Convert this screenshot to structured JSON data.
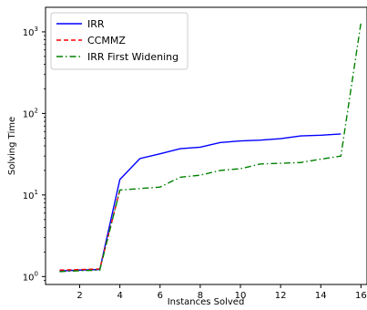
{
  "chart_data": {
    "type": "line",
    "xlabel": "Instances Solved",
    "ylabel": "Solving Time",
    "yscale": "log",
    "xlim": [
      0.3,
      16.3
    ],
    "ylim": [
      0.8,
      2000
    ],
    "x_ticks": [
      2,
      4,
      6,
      8,
      10,
      12,
      14,
      16
    ],
    "y_ticks": [
      {
        "value": 1,
        "base": "10",
        "exp": "0"
      },
      {
        "value": 10,
        "base": "10",
        "exp": "1"
      },
      {
        "value": 100,
        "base": "10",
        "exp": "2"
      },
      {
        "value": 1000,
        "base": "10",
        "exp": "3"
      }
    ],
    "legend_position": "top-left",
    "series": [
      {
        "name": "IRR",
        "color": "#0000ff",
        "style": "solid",
        "x": [
          1,
          2,
          3,
          4,
          5,
          6,
          7,
          8,
          9,
          10,
          11,
          12,
          13,
          14,
          15
        ],
        "values": [
          1.17,
          1.2,
          1.22,
          15.5,
          28,
          32,
          37,
          38.5,
          44,
          46,
          47,
          49,
          53,
          54,
          56
        ]
      },
      {
        "name": "CCMMZ",
        "color": "#ff0000",
        "style": "dashed",
        "x": [
          1,
          2,
          3,
          4
        ],
        "values": [
          1.2,
          1.22,
          1.24,
          11.5
        ]
      },
      {
        "name": "IRR First Widening",
        "color": "#008000",
        "style": "dashdot",
        "x": [
          1,
          2,
          3,
          4,
          5,
          6,
          7,
          8,
          9,
          10,
          11,
          12,
          13,
          14,
          15,
          16
        ],
        "values": [
          1.15,
          1.18,
          1.2,
          11.5,
          12,
          12.5,
          16.5,
          17.5,
          20,
          21,
          24,
          24.5,
          25,
          27.5,
          30,
          1300
        ]
      }
    ]
  }
}
